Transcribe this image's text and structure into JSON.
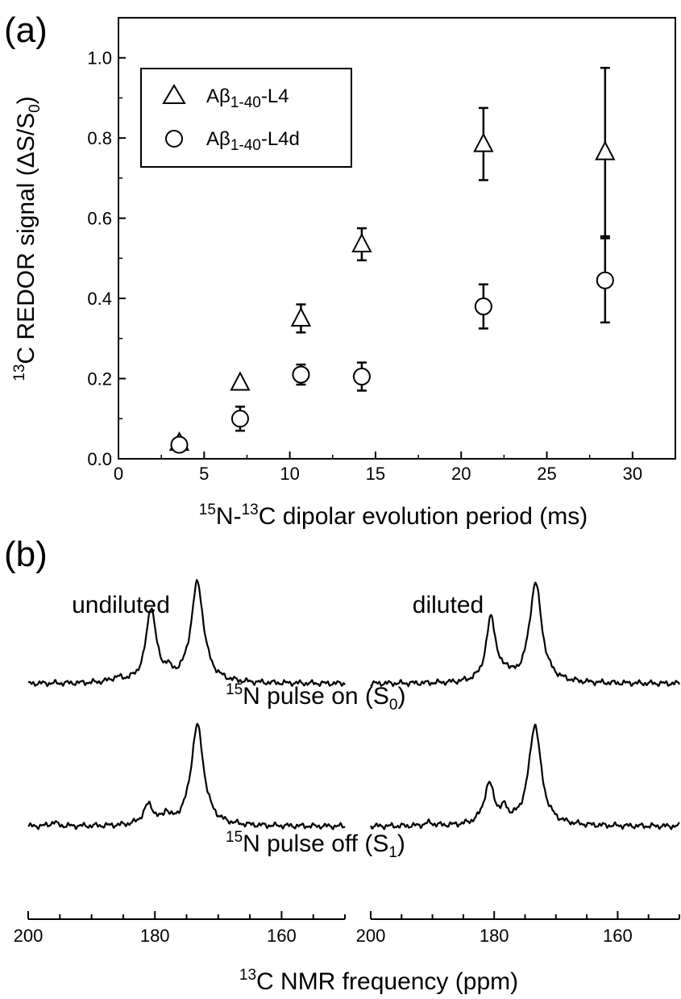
{
  "figure": {
    "panel_a_label": "(a)",
    "panel_b_label": "(b)"
  },
  "chart_data": [
    {
      "type": "scatter",
      "title": "",
      "xlabel": {
        "pre_sup": "15",
        "main1": "N-",
        "sup2": "13",
        "main2": "C dipolar evolution period (ms)"
      },
      "ylabel": {
        "sup": "13",
        "main": "C REDOR signal (ΔS/S",
        "sub": "0",
        "tail": ")"
      },
      "xlim": [
        0,
        32.5
      ],
      "ylim": [
        0,
        1.1
      ],
      "x_ticks": [
        0,
        5,
        10,
        15,
        20,
        25,
        30
      ],
      "y_ticks": [
        "0.0",
        "0.2",
        "0.4",
        "0.6",
        "0.8",
        "1.0"
      ],
      "legend": {
        "placement": "top-left",
        "entries": [
          {
            "marker": "triangle",
            "text_main": "Aβ",
            "text_sub": "1-40",
            "text_tail": "-L4"
          },
          {
            "marker": "circle",
            "text_main": "Aβ",
            "text_sub": "1-40",
            "text_tail": "-L4d"
          }
        ]
      },
      "series": [
        {
          "marker": "triangle",
          "points": [
            {
              "x": 3.55,
              "y": 0.04,
              "err": 0
            },
            {
              "x": 7.1,
              "y": 0.19,
              "err": 0
            },
            {
              "x": 10.65,
              "y": 0.35,
              "err": 0.035
            },
            {
              "x": 14.2,
              "y": 0.535,
              "err": 0.04
            },
            {
              "x": 21.3,
              "y": 0.785,
              "err": 0.09
            },
            {
              "x": 28.4,
              "y": 0.765,
              "err": 0.21
            }
          ]
        },
        {
          "marker": "circle",
          "points": [
            {
              "x": 3.55,
              "y": 0.035,
              "err": 0
            },
            {
              "x": 7.1,
              "y": 0.1,
              "err": 0.03
            },
            {
              "x": 10.65,
              "y": 0.21,
              "err": 0.025
            },
            {
              "x": 14.2,
              "y": 0.205,
              "err": 0.035
            },
            {
              "x": 21.3,
              "y": 0.38,
              "err": 0.055
            },
            {
              "x": 28.4,
              "y": 0.445,
              "err": 0.105
            }
          ]
        }
      ]
    },
    {
      "type": "line",
      "title": "",
      "xlabel": {
        "sup": "13",
        "main": "C NMR frequency (ppm)"
      },
      "xlim": [
        200,
        150
      ],
      "x_ticks": [
        200,
        180,
        160
      ],
      "panels": [
        {
          "title": "undiluted"
        },
        {
          "title": "diluted"
        }
      ],
      "trace_labels": [
        {
          "sup": "15",
          "main": "N pulse on (S",
          "sub": "0",
          "tail": ")"
        },
        {
          "sup": "15",
          "main": "N pulse off (S",
          "sub": "1",
          "tail": ")"
        }
      ],
      "spectra": [
        {
          "panel": 0,
          "trace": 0,
          "peaks": [
            {
              "ppm": 180.6,
              "height": 0.74,
              "width": 0.95
            },
            {
              "ppm": 178.0,
              "height": 0.08,
              "width": 0.6
            },
            {
              "ppm": 173.3,
              "height": 1.0,
              "width": 1.2
            },
            {
              "ppm": 186.0,
              "height": 0.04,
              "width": 1.2
            }
          ]
        },
        {
          "panel": 0,
          "trace": 1,
          "peaks": [
            {
              "ppm": 181.0,
              "height": 0.2,
              "width": 1.0
            },
            {
              "ppm": 178.2,
              "height": 0.1,
              "width": 0.5
            },
            {
              "ppm": 173.3,
              "height": 1.0,
              "width": 1.2
            },
            {
              "ppm": 196.0,
              "height": 0.04,
              "width": 0.6
            }
          ]
        },
        {
          "panel": 1,
          "trace": 0,
          "peaks": [
            {
              "ppm": 180.5,
              "height": 0.65,
              "width": 0.95
            },
            {
              "ppm": 178.0,
              "height": 0.07,
              "width": 0.6
            },
            {
              "ppm": 173.3,
              "height": 1.0,
              "width": 1.2
            }
          ]
        },
        {
          "panel": 1,
          "trace": 1,
          "peaks": [
            {
              "ppm": 180.8,
              "height": 0.4,
              "width": 1.05
            },
            {
              "ppm": 178.3,
              "height": 0.12,
              "width": 0.6
            },
            {
              "ppm": 173.4,
              "height": 1.0,
              "width": 1.2
            },
            {
              "ppm": 190.5,
              "height": 0.03,
              "width": 0.8
            }
          ]
        }
      ]
    }
  ]
}
